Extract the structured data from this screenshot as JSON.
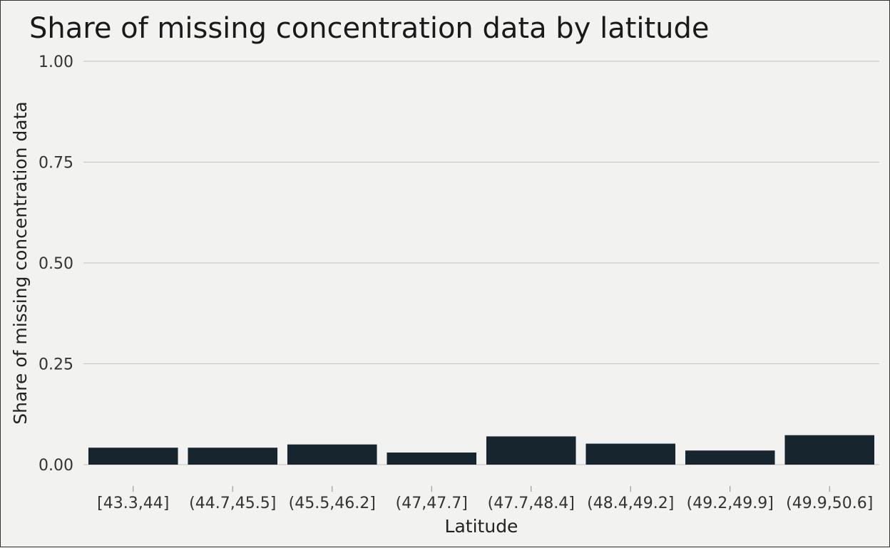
{
  "chart_data": {
    "type": "bar",
    "title": "Share of missing concentration data by latitude",
    "xlabel": "Latitude",
    "ylabel": "Share of missing concentration data",
    "categories": [
      "[43.3,44]",
      "(44.7,45.5]",
      "(45.5,46.2]",
      "(47,47.7]",
      "(47.7,48.4]",
      "(48.4,49.2]",
      "(49.2,49.9]",
      "(49.9,50.6]"
    ],
    "values": [
      0.042,
      0.042,
      0.05,
      0.03,
      0.07,
      0.052,
      0.035,
      0.073
    ],
    "ylim": [
      0,
      1
    ],
    "yticks": [
      "0.00",
      "0.25",
      "0.50",
      "0.75",
      "1.00"
    ],
    "grid": true,
    "bar_color": "#17262e",
    "legend": "none"
  }
}
